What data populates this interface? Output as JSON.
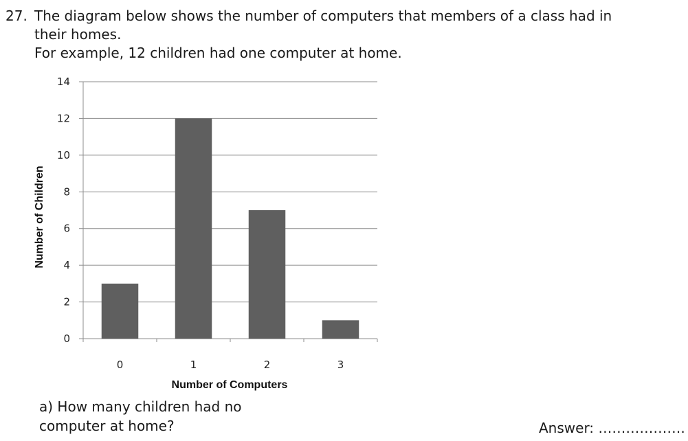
{
  "question": {
    "number": "27.",
    "line1": "The diagram below shows the number of computers that members of a class had in",
    "line2": "their homes.",
    "line3": "For example, 12 children had one computer at home."
  },
  "chart_data": {
    "type": "bar",
    "categories": [
      "0",
      "1",
      "2",
      "3"
    ],
    "values": [
      3,
      12,
      7,
      1
    ],
    "xlabel": "Number of Computers",
    "ylabel": "Number of Children",
    "ylim": [
      0,
      14
    ],
    "yticks": [
      0,
      2,
      4,
      6,
      8,
      10,
      12,
      14
    ],
    "grid": true,
    "bar_color": "#5f5f5f",
    "grid_color": "#8c8c8c"
  },
  "part_a": {
    "line1": "a) How many children had no",
    "line2": "computer at home?"
  },
  "answer": {
    "label": "Answer:",
    "blank": "………………."
  }
}
